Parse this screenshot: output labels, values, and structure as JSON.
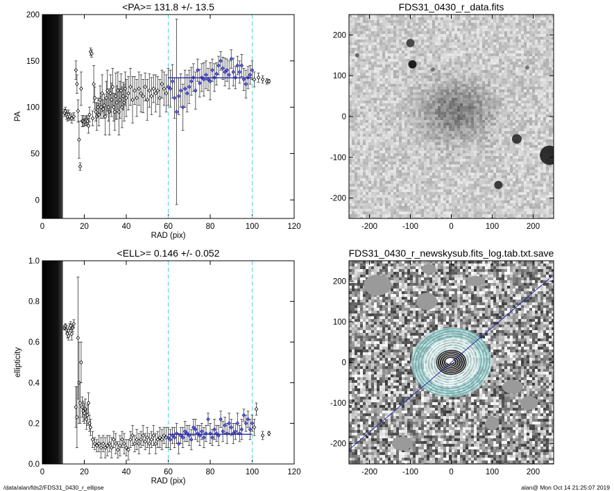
{
  "footer": {
    "path": "/data/alan/fds2/FDS31_0430_r_ellipse",
    "stamp": "alan@  Mon Oct 14 21:25:07 2019"
  },
  "chart_data": [
    {
      "type": "scatter",
      "title": "<PA>= 131.8 +/-  13.5",
      "xlabel": "RAD (pix)",
      "ylabel": "PA",
      "xlim": [
        0,
        120
      ],
      "ylim": [
        -20,
        200
      ],
      "xticks": [
        0,
        20,
        40,
        60,
        80,
        100,
        120
      ],
      "yticks": [
        0,
        50,
        100,
        150,
        200
      ],
      "vlines": [
        60,
        100
      ],
      "mean_line": {
        "y": 131.8,
        "x_range": [
          60,
          100
        ]
      },
      "points": [
        [
          10.5,
          94,
          4
        ],
        [
          11,
          96,
          4
        ],
        [
          11.5,
          92,
          5
        ],
        [
          12,
          90,
          5
        ],
        [
          12.5,
          92,
          5
        ],
        [
          13,
          90,
          4
        ],
        [
          14,
          88,
          5
        ],
        [
          15,
          90,
          4
        ],
        [
          16,
          140,
          10
        ],
        [
          16.5,
          125,
          10
        ],
        [
          17,
          96,
          12
        ],
        [
          17.5,
          65,
          20
        ],
        [
          18,
          36,
          4
        ],
        [
          18.5,
          120,
          18
        ],
        [
          19,
          85,
          6
        ],
        [
          19.5,
          85,
          6
        ],
        [
          20,
          84,
          4
        ],
        [
          20.5,
          85,
          5
        ],
        [
          21,
          86,
          5
        ],
        [
          21.5,
          85,
          5
        ],
        [
          22,
          80,
          8
        ],
        [
          22.5,
          92,
          8
        ],
        [
          23,
          160,
          4
        ],
        [
          23.5,
          158,
          4
        ],
        [
          24,
          88,
          8
        ],
        [
          24.5,
          125,
          20
        ],
        [
          25,
          110,
          12
        ],
        [
          25.5,
          95,
          10
        ],
        [
          26,
          90,
          15
        ],
        [
          26.5,
          100,
          10
        ],
        [
          27,
          92,
          12
        ],
        [
          27.5,
          108,
          15
        ],
        [
          28,
          100,
          12
        ],
        [
          28.5,
          115,
          20
        ],
        [
          29,
          98,
          10
        ],
        [
          29.5,
          102,
          12
        ],
        [
          30,
          90,
          20
        ],
        [
          30.5,
          110,
          18
        ],
        [
          31,
          118,
          22
        ],
        [
          31.5,
          100,
          15
        ],
        [
          32,
          95,
          25
        ],
        [
          32.5,
          115,
          20
        ],
        [
          33,
          108,
          18
        ],
        [
          33.5,
          122,
          20
        ],
        [
          34,
          100,
          15
        ],
        [
          34.5,
          95,
          20
        ],
        [
          35,
          112,
          25
        ],
        [
          35.5,
          105,
          18
        ],
        [
          36,
          118,
          20
        ],
        [
          36.5,
          95,
          25
        ],
        [
          37,
          108,
          20
        ],
        [
          37.5,
          118,
          18
        ],
        [
          38,
          100,
          22
        ],
        [
          38.5,
          112,
          15
        ],
        [
          39,
          105,
          20
        ],
        [
          39.5,
          120,
          18
        ],
        [
          40,
          110,
          20
        ],
        [
          41,
          115,
          18
        ],
        [
          42,
          122,
          20
        ],
        [
          43,
          108,
          25
        ],
        [
          44,
          118,
          15
        ],
        [
          45,
          110,
          20
        ],
        [
          46,
          120,
          18
        ],
        [
          47,
          115,
          20
        ],
        [
          48,
          112,
          18
        ],
        [
          49,
          122,
          15
        ],
        [
          50,
          108,
          22
        ],
        [
          51,
          118,
          18
        ],
        [
          52,
          112,
          20
        ],
        [
          53,
          120,
          15
        ],
        [
          54,
          115,
          20
        ],
        [
          55,
          118,
          15
        ],
        [
          56,
          110,
          20
        ],
        [
          57,
          125,
          15
        ],
        [
          58,
          120,
          18
        ],
        [
          59,
          115,
          20
        ],
        [
          60,
          122,
          20
        ],
        [
          61,
          120,
          20
        ],
        [
          62,
          128,
          18
        ],
        [
          63,
          110,
          22
        ],
        [
          64,
          95,
          100
        ],
        [
          65,
          112,
          20
        ],
        [
          66,
          118,
          18
        ],
        [
          67,
          100,
          25
        ],
        [
          68,
          120,
          20
        ],
        [
          69,
          115,
          20
        ],
        [
          70,
          122,
          18
        ],
        [
          71,
          128,
          15
        ],
        [
          72,
          132,
          15
        ],
        [
          73,
          118,
          20
        ],
        [
          74,
          140,
          12
        ],
        [
          75,
          126,
          15
        ],
        [
          76,
          132,
          15
        ],
        [
          77,
          130,
          18
        ],
        [
          78,
          135,
          15
        ],
        [
          79,
          130,
          12
        ],
        [
          80,
          128,
          20
        ],
        [
          81,
          140,
          12
        ],
        [
          82,
          132,
          15
        ],
        [
          83,
          136,
          12
        ],
        [
          84,
          145,
          10
        ],
        [
          85,
          150,
          10
        ],
        [
          86,
          142,
          12
        ],
        [
          87,
          138,
          15
        ],
        [
          88,
          140,
          12
        ],
        [
          89,
          135,
          15
        ],
        [
          90,
          152,
          10
        ],
        [
          91,
          138,
          15
        ],
        [
          92,
          132,
          12
        ],
        [
          93,
          145,
          10
        ],
        [
          94,
          138,
          12
        ],
        [
          95,
          145,
          12
        ],
        [
          96,
          130,
          12
        ],
        [
          97,
          125,
          15
        ],
        [
          98,
          132,
          12
        ],
        [
          99,
          135,
          10
        ],
        [
          100,
          140,
          10
        ],
        [
          101,
          130,
          8
        ],
        [
          103,
          132,
          5
        ],
        [
          105,
          130,
          4
        ],
        [
          107,
          128,
          3
        ],
        [
          108,
          128,
          2
        ]
      ]
    },
    {
      "type": "image",
      "title": "FDS31_0430_r_data.fits",
      "xlim": [
        -250,
        250
      ],
      "ylim": [
        -250,
        250
      ],
      "xticks": [
        -200,
        -100,
        0,
        100,
        200
      ],
      "yticks": [
        -200,
        -100,
        0,
        100,
        200
      ]
    },
    {
      "type": "scatter",
      "title": "<ELL>= 0.146 +/-  0.052",
      "xlabel": "RAD (pix)",
      "ylabel": "ellipticity",
      "xlim": [
        0,
        120
      ],
      "ylim": [
        0,
        1
      ],
      "xticks": [
        0,
        20,
        40,
        60,
        80,
        100,
        120
      ],
      "yticks": [
        0.0,
        0.2,
        0.4,
        0.6,
        0.8,
        1.0
      ],
      "vlines": [
        60,
        100
      ],
      "mean_line": {
        "y": 0.146,
        "x_range": [
          60,
          100
        ]
      },
      "points": [
        [
          10.5,
          0.67,
          0.01
        ],
        [
          11,
          0.68,
          0.01
        ],
        [
          11.5,
          0.66,
          0.02
        ],
        [
          12,
          0.64,
          0.02
        ],
        [
          12.5,
          0.63,
          0.02
        ],
        [
          13,
          0.67,
          0.02
        ],
        [
          13.5,
          0.68,
          0.02
        ],
        [
          14,
          0.64,
          0.03
        ],
        [
          14.5,
          0.67,
          0.02
        ],
        [
          15,
          0.69,
          0.02
        ],
        [
          16,
          0.28,
          0.1
        ],
        [
          16.5,
          0.23,
          0.15
        ],
        [
          17,
          0.62,
          0.3
        ],
        [
          17.5,
          0.4,
          0.2
        ],
        [
          18,
          0.3,
          0.1
        ],
        [
          18.5,
          0.5,
          0.1
        ],
        [
          19,
          0.28,
          0.05
        ],
        [
          19.5,
          0.26,
          0.05
        ],
        [
          20,
          0.25,
          0.05
        ],
        [
          20.5,
          0.27,
          0.05
        ],
        [
          21,
          0.22,
          0.05
        ],
        [
          21.5,
          0.24,
          0.05
        ],
        [
          22,
          0.3,
          0.05
        ],
        [
          22.5,
          0.2,
          0.04
        ],
        [
          23,
          0.18,
          0.04
        ],
        [
          24,
          0.12,
          0.04
        ],
        [
          25,
          0.1,
          0.03
        ],
        [
          26,
          0.09,
          0.03
        ],
        [
          27,
          0.1,
          0.04
        ],
        [
          28,
          0.08,
          0.05
        ],
        [
          29,
          0.1,
          0.04
        ],
        [
          30,
          0.08,
          0.05
        ],
        [
          31,
          0.09,
          0.05
        ],
        [
          32,
          0.1,
          0.04
        ],
        [
          33,
          0.08,
          0.05
        ],
        [
          34,
          0.12,
          0.04
        ],
        [
          35,
          0.1,
          0.05
        ],
        [
          36,
          0.07,
          0.04
        ],
        [
          37,
          0.09,
          0.05
        ],
        [
          38,
          0.12,
          0.04
        ],
        [
          39,
          0.1,
          0.05
        ],
        [
          40,
          0.08,
          0.04
        ],
        [
          41,
          0.07,
          0.05
        ],
        [
          42,
          0.12,
          0.04
        ],
        [
          43,
          0.14,
          0.05
        ],
        [
          44,
          0.1,
          0.04
        ],
        [
          45,
          0.12,
          0.05
        ],
        [
          46,
          0.1,
          0.05
        ],
        [
          47,
          0.12,
          0.04
        ],
        [
          48,
          0.14,
          0.05
        ],
        [
          49,
          0.11,
          0.04
        ],
        [
          50,
          0.13,
          0.05
        ],
        [
          51,
          0.1,
          0.05
        ],
        [
          52,
          0.12,
          0.04
        ],
        [
          53,
          0.14,
          0.05
        ],
        [
          54,
          0.1,
          0.05
        ],
        [
          55,
          0.12,
          0.04
        ],
        [
          56,
          0.13,
          0.05
        ],
        [
          57,
          0.12,
          0.05
        ],
        [
          58,
          0.14,
          0.04
        ],
        [
          59,
          0.13,
          0.05
        ],
        [
          60,
          0.13,
          0.05
        ],
        [
          61,
          0.12,
          0.05
        ],
        [
          62,
          0.14,
          0.04
        ],
        [
          63,
          0.13,
          0.05
        ],
        [
          64,
          0.15,
          0.05
        ],
        [
          65,
          0.1,
          0.05
        ],
        [
          66,
          0.14,
          0.04
        ],
        [
          67,
          0.13,
          0.05
        ],
        [
          68,
          0.16,
          0.05
        ],
        [
          69,
          0.15,
          0.04
        ],
        [
          70,
          0.14,
          0.05
        ],
        [
          71,
          0.12,
          0.05
        ],
        [
          72,
          0.18,
          0.04
        ],
        [
          73,
          0.17,
          0.05
        ],
        [
          74,
          0.15,
          0.04
        ],
        [
          75,
          0.14,
          0.05
        ],
        [
          76,
          0.16,
          0.04
        ],
        [
          77,
          0.13,
          0.05
        ],
        [
          78,
          0.15,
          0.04
        ],
        [
          79,
          0.22,
          0.03
        ],
        [
          80,
          0.15,
          0.05
        ],
        [
          81,
          0.13,
          0.04
        ],
        [
          82,
          0.17,
          0.05
        ],
        [
          83,
          0.15,
          0.04
        ],
        [
          84,
          0.14,
          0.05
        ],
        [
          85,
          0.22,
          0.04
        ],
        [
          86,
          0.16,
          0.05
        ],
        [
          87,
          0.19,
          0.04
        ],
        [
          88,
          0.15,
          0.05
        ],
        [
          89,
          0.2,
          0.05
        ],
        [
          90,
          0.18,
          0.04
        ],
        [
          91,
          0.15,
          0.05
        ],
        [
          92,
          0.16,
          0.04
        ],
        [
          93,
          0.2,
          0.05
        ],
        [
          94,
          0.15,
          0.04
        ],
        [
          95,
          0.17,
          0.05
        ],
        [
          96,
          0.24,
          0.03
        ],
        [
          97,
          0.2,
          0.04
        ],
        [
          98,
          0.22,
          0.04
        ],
        [
          99,
          0.17,
          0.05
        ],
        [
          100,
          0.2,
          0.04
        ],
        [
          101,
          0.18,
          0.04
        ],
        [
          102,
          0.27,
          0.03
        ],
        [
          105,
          0.14,
          0.02
        ],
        [
          108,
          0.15,
          0.01
        ]
      ]
    },
    {
      "type": "image",
      "title": "FDS31_0430_r_newskysub.fits_log.tab.txt.save",
      "xlim": [
        -250,
        250
      ],
      "ylim": [
        -250,
        250
      ],
      "xticks": [
        -200,
        -100,
        0,
        100,
        200
      ],
      "yticks": [
        -200,
        -100,
        0,
        100,
        200
      ],
      "line_slope_deg": 40.5
    }
  ],
  "colors": {
    "accent": "#2222aa",
    "cyan": "#4fd6d6",
    "teal": "#5aa8a8"
  }
}
